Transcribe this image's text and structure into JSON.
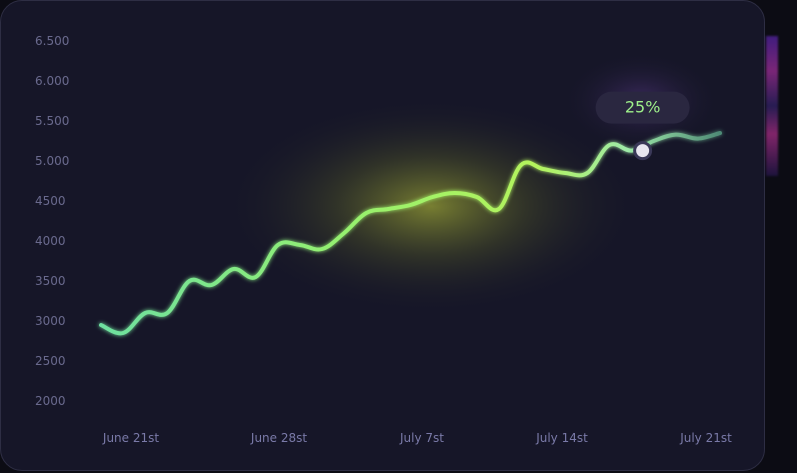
{
  "chart_data": {
    "type": "line",
    "x_tick_labels": [
      "June 21st",
      "June 28st",
      "July 7st",
      "July 14st",
      "July 21st"
    ],
    "y_tick_labels": [
      "6.500",
      "6.000",
      "5.500",
      "5.000",
      "4500",
      "4000",
      "3500",
      "3000",
      "2500",
      "2000"
    ],
    "ylim": [
      2000,
      6500
    ],
    "xlim": [
      0,
      31
    ],
    "x_tick_positions": [
      1,
      8,
      15,
      22,
      29
    ],
    "series": [
      {
        "values": [
          [
            0,
            2950
          ],
          [
            1,
            2850
          ],
          [
            2,
            3100
          ],
          [
            3,
            3100
          ],
          [
            4,
            3500
          ],
          [
            5,
            3450
          ],
          [
            6,
            3650
          ],
          [
            7,
            3550
          ],
          [
            8,
            3950
          ],
          [
            9,
            3950
          ],
          [
            10,
            3900
          ],
          [
            11,
            4100
          ],
          [
            12,
            4350
          ],
          [
            13,
            4400
          ],
          [
            14,
            4450
          ],
          [
            15,
            4550
          ],
          [
            16,
            4600
          ],
          [
            17,
            4550
          ],
          [
            18,
            4400
          ],
          [
            19,
            4950
          ],
          [
            20,
            4900
          ],
          [
            21,
            4850
          ],
          [
            22,
            4850
          ],
          [
            23,
            5200
          ],
          [
            24,
            5130
          ],
          [
            25,
            5250
          ],
          [
            26,
            5330
          ],
          [
            27,
            5280
          ],
          [
            28,
            5350
          ]
        ]
      }
    ],
    "highlight": {
      "x": 24.5,
      "y": 5130,
      "label": "25%"
    },
    "grid": false,
    "legend": "none"
  },
  "colors": {
    "background": "#161628",
    "line_start": "#6ee0a0",
    "line_mid": "#b6f560",
    "line_end": "#5fa888",
    "glow": "#b8c832",
    "badge_bg": "#2a2740",
    "badge_text": "#9ef08a",
    "marker": "#e8e6f0"
  }
}
